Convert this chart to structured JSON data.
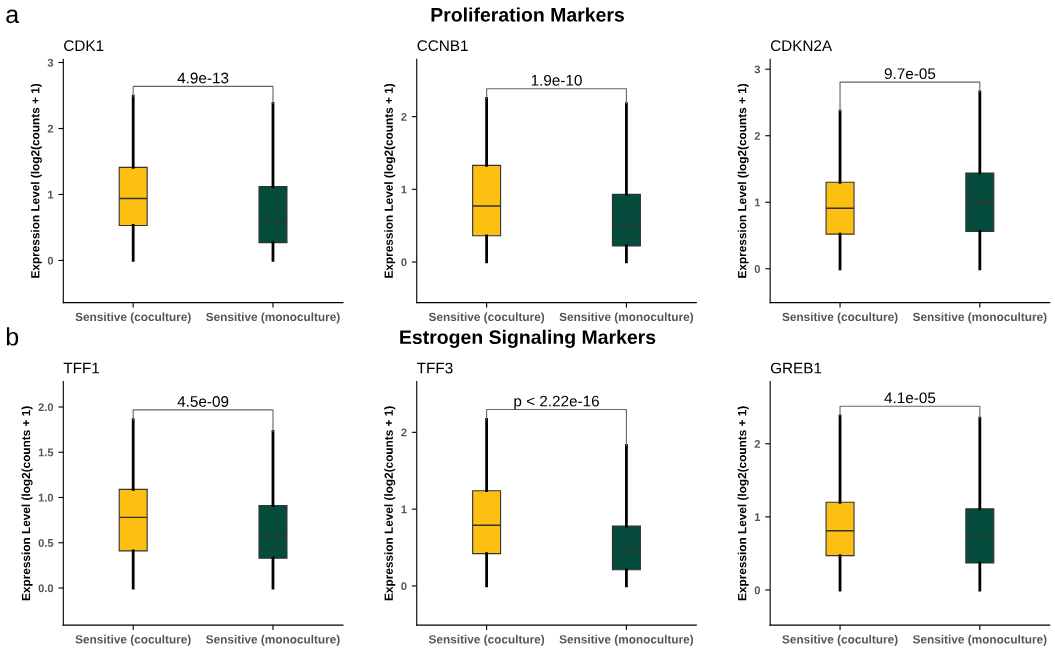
{
  "chart_data": [
    {
      "type": "box",
      "title": "CDK1",
      "ylabel": "Expression Level (log2(counts + 1)",
      "categories": [
        "Sensitive (coculture)",
        "Sensitive (monoculture)"
      ],
      "colors": [
        "#fcbf12",
        "#064c3c"
      ],
      "ylim": [
        -0.64,
        3.05
      ],
      "yticks": [
        0,
        1,
        2,
        3
      ],
      "grid": false,
      "annotations": [
        "a",
        "Proliferation Markers",
        "4.9e-13"
      ],
      "boxes": [
        {
          "low": 0,
          "q1": 0.53,
          "median": 0.94,
          "q3": 1.41,
          "high": 2.49
        },
        {
          "low": 0,
          "q1": 0.27,
          "median": 0.59,
          "q3": 1.12,
          "high": 2.38
        }
      ]
    },
    {
      "type": "box",
      "title": "CCNB1",
      "ylabel": "Expression Level (log2(counts + 1)",
      "categories": [
        "Sensitive (coculture)",
        "Sensitive (monoculture)"
      ],
      "colors": [
        "#fcbf12",
        "#064c3c"
      ],
      "ylim": [
        -0.56,
        2.79
      ],
      "yticks": [
        0,
        1,
        2
      ],
      "grid": false,
      "annotations": [
        "1.9e-10"
      ],
      "boxes": [
        {
          "low": 0,
          "q1": 0.36,
          "median": 0.77,
          "q3": 1.33,
          "high": 2.25
        },
        {
          "low": 0,
          "q1": 0.22,
          "median": 0.51,
          "q3": 0.93,
          "high": 2.18
        }
      ]
    },
    {
      "type": "box",
      "title": "CDKN2A",
      "ylabel": "Expression Level (log2(counts + 1)",
      "categories": [
        "Sensitive (coculture)",
        "Sensitive (monoculture)"
      ],
      "colors": [
        "#fcbf12",
        "#064c3c"
      ],
      "ylim": [
        -0.51,
        3.15
      ],
      "yticks": [
        0,
        1,
        2,
        3
      ],
      "grid": false,
      "annotations": [
        "9.7e-05"
      ],
      "boxes": [
        {
          "low": 0,
          "q1": 0.52,
          "median": 0.91,
          "q3": 1.3,
          "high": 2.37
        },
        {
          "low": 0,
          "q1": 0.56,
          "median": 1.0,
          "q3": 1.44,
          "high": 2.66
        }
      ]
    },
    {
      "type": "box",
      "title": "TFF1",
      "ylabel": "Expression Level (log2(counts + 1)",
      "categories": [
        "Sensitive (coculture)",
        "Sensitive (monoculture)"
      ],
      "colors": [
        "#fcbf12",
        "#064c3c"
      ],
      "ylim": [
        -0.41,
        2.28
      ],
      "yticks": [
        {
          "value": 0,
          "label": "0.0"
        },
        {
          "value": 0.5,
          "label": "0.5"
        },
        {
          "value": 1,
          "label": "1.0"
        },
        {
          "value": 1.5,
          "label": "1.5"
        },
        {
          "value": 2,
          "label": "2.0"
        }
      ],
      "grid": false,
      "annotations": [
        "b",
        "Estrogen Signaling Markers",
        "4.5e-09"
      ],
      "boxes": [
        {
          "low": 0,
          "q1": 0.41,
          "median": 0.78,
          "q3": 1.09,
          "high": 1.86
        },
        {
          "low": 0,
          "q1": 0.33,
          "median": 0.58,
          "q3": 0.91,
          "high": 1.73
        }
      ]
    },
    {
      "type": "box",
      "title": "TFF3",
      "ylabel": "Expression Level (log2(counts + 1)",
      "categories": [
        "Sensitive (coculture)",
        "Sensitive (monoculture)"
      ],
      "colors": [
        "#fcbf12",
        "#064c3c"
      ],
      "ylim": [
        -0.51,
        2.66
      ],
      "yticks": [
        0,
        1,
        2
      ],
      "grid": false,
      "annotations": [
        "p < 2.22e-16"
      ],
      "boxes": [
        {
          "low": 0,
          "q1": 0.42,
          "median": 0.79,
          "q3": 1.24,
          "high": 2.17
        },
        {
          "low": 0,
          "q1": 0.21,
          "median": 0.47,
          "q3": 0.78,
          "high": 1.83
        }
      ]
    },
    {
      "type": "box",
      "title": "GREB1",
      "ylabel": "Expression Level (log2(counts + 1)",
      "categories": [
        "Sensitive (coculture)",
        "Sensitive (monoculture)"
      ],
      "colors": [
        "#fcbf12",
        "#064c3c"
      ],
      "ylim": [
        -0.48,
        2.85
      ],
      "yticks": [
        0,
        1,
        2
      ],
      "grid": false,
      "annotations": [
        "4.1e-05"
      ],
      "boxes": [
        {
          "low": 0,
          "q1": 0.47,
          "median": 0.81,
          "q3": 1.2,
          "high": 2.38
        },
        {
          "low": 0,
          "q1": 0.37,
          "median": 0.72,
          "q3": 1.11,
          "high": 2.35
        }
      ]
    }
  ]
}
